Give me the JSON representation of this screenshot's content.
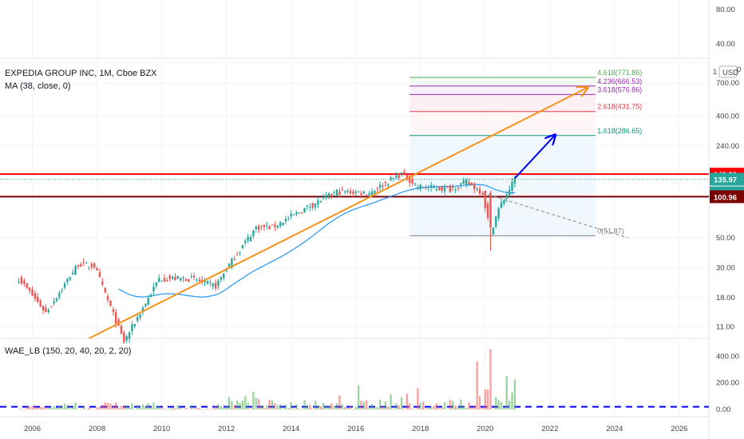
{
  "header": {
    "top_ticks": [
      "80.00",
      "40.00"
    ],
    "symbol_title": "EXPEDIA GROUP INC, 1M, Cboe BZX",
    "ma_legend": "MA (38, close, 0)",
    "currency_label": "USD",
    "currency_prefix": "1",
    "currency_suffix": "0"
  },
  "indicator": {
    "legend": "WAE_LB (150, 20, 40, 20, 2, 20)"
  },
  "colors": {
    "up": "#26a69a",
    "down": "#ef5350",
    "ma": "#2196f3",
    "trend": "#f7931a",
    "resistance": "#ff0000",
    "support": "#7b0000",
    "arrow": "#0000ff"
  },
  "chart_data": [
    {
      "type": "candlestick",
      "title": "EXPEDIA GROUP INC, 1M, Cboe BZX",
      "scale": "log",
      "ylim": [
        9,
        1000
      ],
      "y_ticks": [
        "1000",
        "700.00",
        "400.00",
        "240.00",
        "100.00",
        "50.00",
        "30.00",
        "18.00",
        "11.00"
      ],
      "x_ticks": [
        "2006",
        "2008",
        "2010",
        "2012",
        "2014",
        "2016",
        "2018",
        "2020",
        "2022",
        "2024",
        "2026"
      ],
      "xlim": [
        "2005-01",
        "2026-12"
      ],
      "key_points": [
        {
          "date": "2005-08",
          "price": 25
        },
        {
          "date": "2006-06",
          "price": 14
        },
        {
          "date": "2007-06",
          "price": 32
        },
        {
          "date": "2007-12",
          "price": 31
        },
        {
          "date": "2008-11",
          "price": 8.5
        },
        {
          "date": "2009-12",
          "price": 25
        },
        {
          "date": "2010-12",
          "price": 25
        },
        {
          "date": "2011-09",
          "price": 22
        },
        {
          "date": "2012-03",
          "price": 34
        },
        {
          "date": "2012-12",
          "price": 60
        },
        {
          "date": "2013-06",
          "price": 60
        },
        {
          "date": "2014-06",
          "price": 82
        },
        {
          "date": "2015-06",
          "price": 110
        },
        {
          "date": "2016-06",
          "price": 108
        },
        {
          "date": "2017-06",
          "price": 150
        },
        {
          "date": "2017-12",
          "price": 120
        },
        {
          "date": "2018-12",
          "price": 115
        },
        {
          "date": "2019-06",
          "price": 130
        },
        {
          "date": "2019-12",
          "price": 108
        },
        {
          "date": "2020-03",
          "price": 55
        },
        {
          "date": "2020-06",
          "price": 82
        },
        {
          "date": "2020-12",
          "price": 136
        }
      ],
      "ma_period": 38,
      "series": [
        {
          "name": "MA (38, close, 0)"
        }
      ],
      "price_labels": [
        {
          "value": 148.38,
          "text": "148.38",
          "color": "#ff0000"
        },
        {
          "value": 135.97,
          "text": "135.97",
          "color": "#26a69a"
        },
        {
          "value": 120,
          "text": "24d 1h",
          "color": "#26a69a"
        },
        {
          "value": 100.96,
          "text": "100.96",
          "color": "#7b0000"
        }
      ],
      "horizontal_lines": [
        {
          "value": 148.38,
          "color": "#ff0000"
        },
        {
          "value": 100.96,
          "color": "#7b0000"
        }
      ],
      "fibonacci": {
        "x_range": [
          "2017-09",
          "2023-06"
        ],
        "levels": [
          {
            "label": "4.618(771.86)",
            "value": 771.86,
            "color": "#4caf50"
          },
          {
            "label": "4.236(666.53)",
            "value": 666.53,
            "color": "#9c27b0"
          },
          {
            "label": "3.618(576.86)",
            "value": 576.86,
            "color": "#9c27b0"
          },
          {
            "label": "2.618(431.75)",
            "value": 431.75,
            "color": "#f23645"
          },
          {
            "label": "1.618(286.65)",
            "value": 286.65,
            "color": "#089981"
          },
          {
            "label": "0(51.87)",
            "value": 51.87,
            "color": "#787b86"
          }
        ]
      },
      "annotations": [
        {
          "type": "trendline",
          "from": {
            "date": "2007-10",
            "price": 9
          },
          "to": {
            "date": "2023-03",
            "price": 650
          },
          "color": "#f7931a",
          "arrow": true
        },
        {
          "type": "arrow",
          "from": {
            "date": "2020-12",
            "price": 138
          },
          "to": {
            "date": "2022-03",
            "price": 290
          },
          "color": "#0000ff"
        },
        {
          "type": "dashed",
          "from": {
            "date": "2019-12",
            "price": 108
          },
          "to": {
            "date": "2024-06",
            "price": 50
          },
          "color": "#888888"
        }
      ]
    },
    {
      "type": "bar",
      "title": "WAE_LB (150, 20, 40, 20, 2, 20)",
      "ylim": [
        0,
        450
      ],
      "y_ticks": [
        "400.00",
        "200.00",
        "0.00"
      ],
      "dead_zone": 20,
      "notable_bars": [
        {
          "date": "2016-02",
          "value": 180,
          "color": "#4caf50"
        },
        {
          "date": "2017-12",
          "value": 160,
          "color": "#ef5350"
        },
        {
          "date": "2019-10",
          "value": 360,
          "color": "#ef5350"
        },
        {
          "date": "2020-03",
          "value": 455,
          "color": "#ef5350"
        },
        {
          "date": "2020-09",
          "value": 250,
          "color": "#4caf50"
        },
        {
          "date": "2020-12",
          "value": 225,
          "color": "#4caf50"
        }
      ]
    }
  ]
}
